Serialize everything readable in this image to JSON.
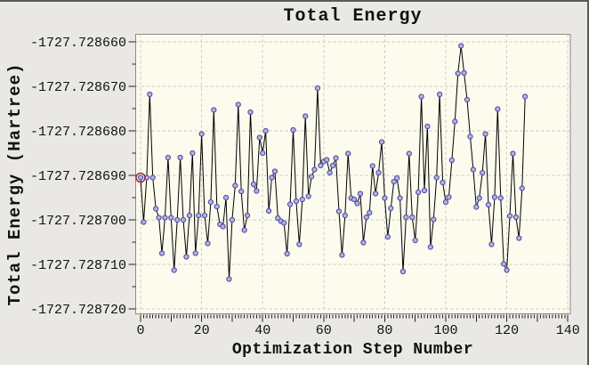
{
  "header": {
    "title": "Total Energy"
  },
  "colors": {
    "background": "#eae8e4",
    "plot_background": "#fcfbee",
    "grid": "#c8c8c0",
    "plot_border": "#8a8a8a",
    "line": "#000000",
    "marker_fill": "#b3b3de",
    "marker_stroke": "#4747a1",
    "selected_ring": "#aa2244",
    "text": "#111111",
    "window_edge": "#5a5a5a"
  },
  "chart_data": {
    "type": "line",
    "title": "Total Energy",
    "xlabel": "Optimization Step Number",
    "ylabel": "Total Energy (Hartree)",
    "grid": "dashed",
    "legend": "none",
    "marker": "circle",
    "highlighted_point_index": 0,
    "x_start": 0,
    "x_step": 1,
    "x_ticks": [
      0,
      20,
      40,
      60,
      80,
      100,
      120,
      140
    ],
    "y_ticks": [
      -1727.72866,
      -1727.72867,
      -1727.72868,
      -1727.72869,
      -1727.7287,
      -1727.72871,
      -1727.72872
    ],
    "y_tick_labels": [
      "-1727.728660",
      "-1727.728670",
      "-1727.728680",
      "-1727.728690",
      "-1727.728700",
      "-1727.728710",
      "-1727.728720"
    ],
    "xlim": [
      -1.6,
      140.9
    ],
    "ylim": [
      -1727.7287228,
      -1727.7286583
    ],
    "values": [
      -1727.7286905,
      -1727.7287005,
      -1727.7286905,
      -1727.7286718,
      -1727.7286905,
      -1727.7286975,
      -1727.7286995,
      -1727.7287075,
      -1727.7286995,
      -1727.728686,
      -1727.7286995,
      -1727.7287113,
      -1727.7287,
      -1727.728686,
      -1727.7287,
      -1727.7287083,
      -1727.728699,
      -1727.728685,
      -1727.7287075,
      -1727.728699,
      -1727.7286807,
      -1727.728699,
      -1727.7287053,
      -1727.728696,
      -1727.7286753,
      -1727.728697,
      -1727.728701,
      -1727.7287015,
      -1727.728695,
      -1727.7287133,
      -1727.7287,
      -1727.7286923,
      -1727.7286741,
      -1727.7286936,
      -1727.7287023,
      -1727.728699,
      -1727.7286758,
      -1727.728692,
      -1727.7286935,
      -1727.7286815,
      -1727.728685,
      -1727.72868,
      -1727.728698,
      -1727.7286905,
      -1727.7286891,
      -1727.7286996,
      -1727.7287003,
      -1727.7287007,
      -1727.7287076,
      -1727.7286965,
      -1727.7286798,
      -1727.7286958,
      -1727.7287055,
      -1727.7286954,
      -1727.7286767,
      -1727.7286947,
      -1727.7286903,
      -1727.7286887,
      -1727.7286704,
      -1727.7286878,
      -1727.7286869,
      -1727.7286865,
      -1727.7286894,
      -1727.7286878,
      -1727.7286861,
      -1727.7286981,
      -1727.7287079,
      -1727.728699,
      -1727.7286851,
      -1727.7286951,
      -1727.7286954,
      -1727.7286963,
      -1727.7286941,
      -1727.7287051,
      -1727.7286994,
      -1727.7286984,
      -1727.7286879,
      -1727.7286941,
      -1727.7286894,
      -1727.7286825,
      -1727.7286951,
      -1727.7287038,
      -1727.7286974,
      -1727.7286914,
      -1727.7286906,
      -1727.7286951,
      -1727.7287116,
      -1727.7286994,
      -1727.7286851,
      -1727.7286994,
      -1727.7287046,
      -1727.7286938,
      -1727.7286723,
      -1727.7286934,
      -1727.728679,
      -1727.7287061,
      -1727.7286999,
      -1727.7286905,
      -1727.7286718,
      -1727.7286916,
      -1727.728696,
      -1727.7286949,
      -1727.7286866,
      -1727.7286779,
      -1727.7286671,
      -1727.7286609,
      -1727.728667,
      -1727.728673,
      -1727.7286813,
      -1727.7286887,
      -1727.7286971,
      -1727.7286951,
      -1727.7286894,
      -1727.7286807,
      -1727.7286966,
      -1727.7287055,
      -1727.7286949,
      -1727.7286751,
      -1727.7286951,
      -1727.7287099,
      -1727.7287113,
      -1727.7286991,
      -1727.7286851,
      -1727.7286994,
      -1727.7287041,
      -1727.7286929,
      -1727.7286723
    ]
  }
}
